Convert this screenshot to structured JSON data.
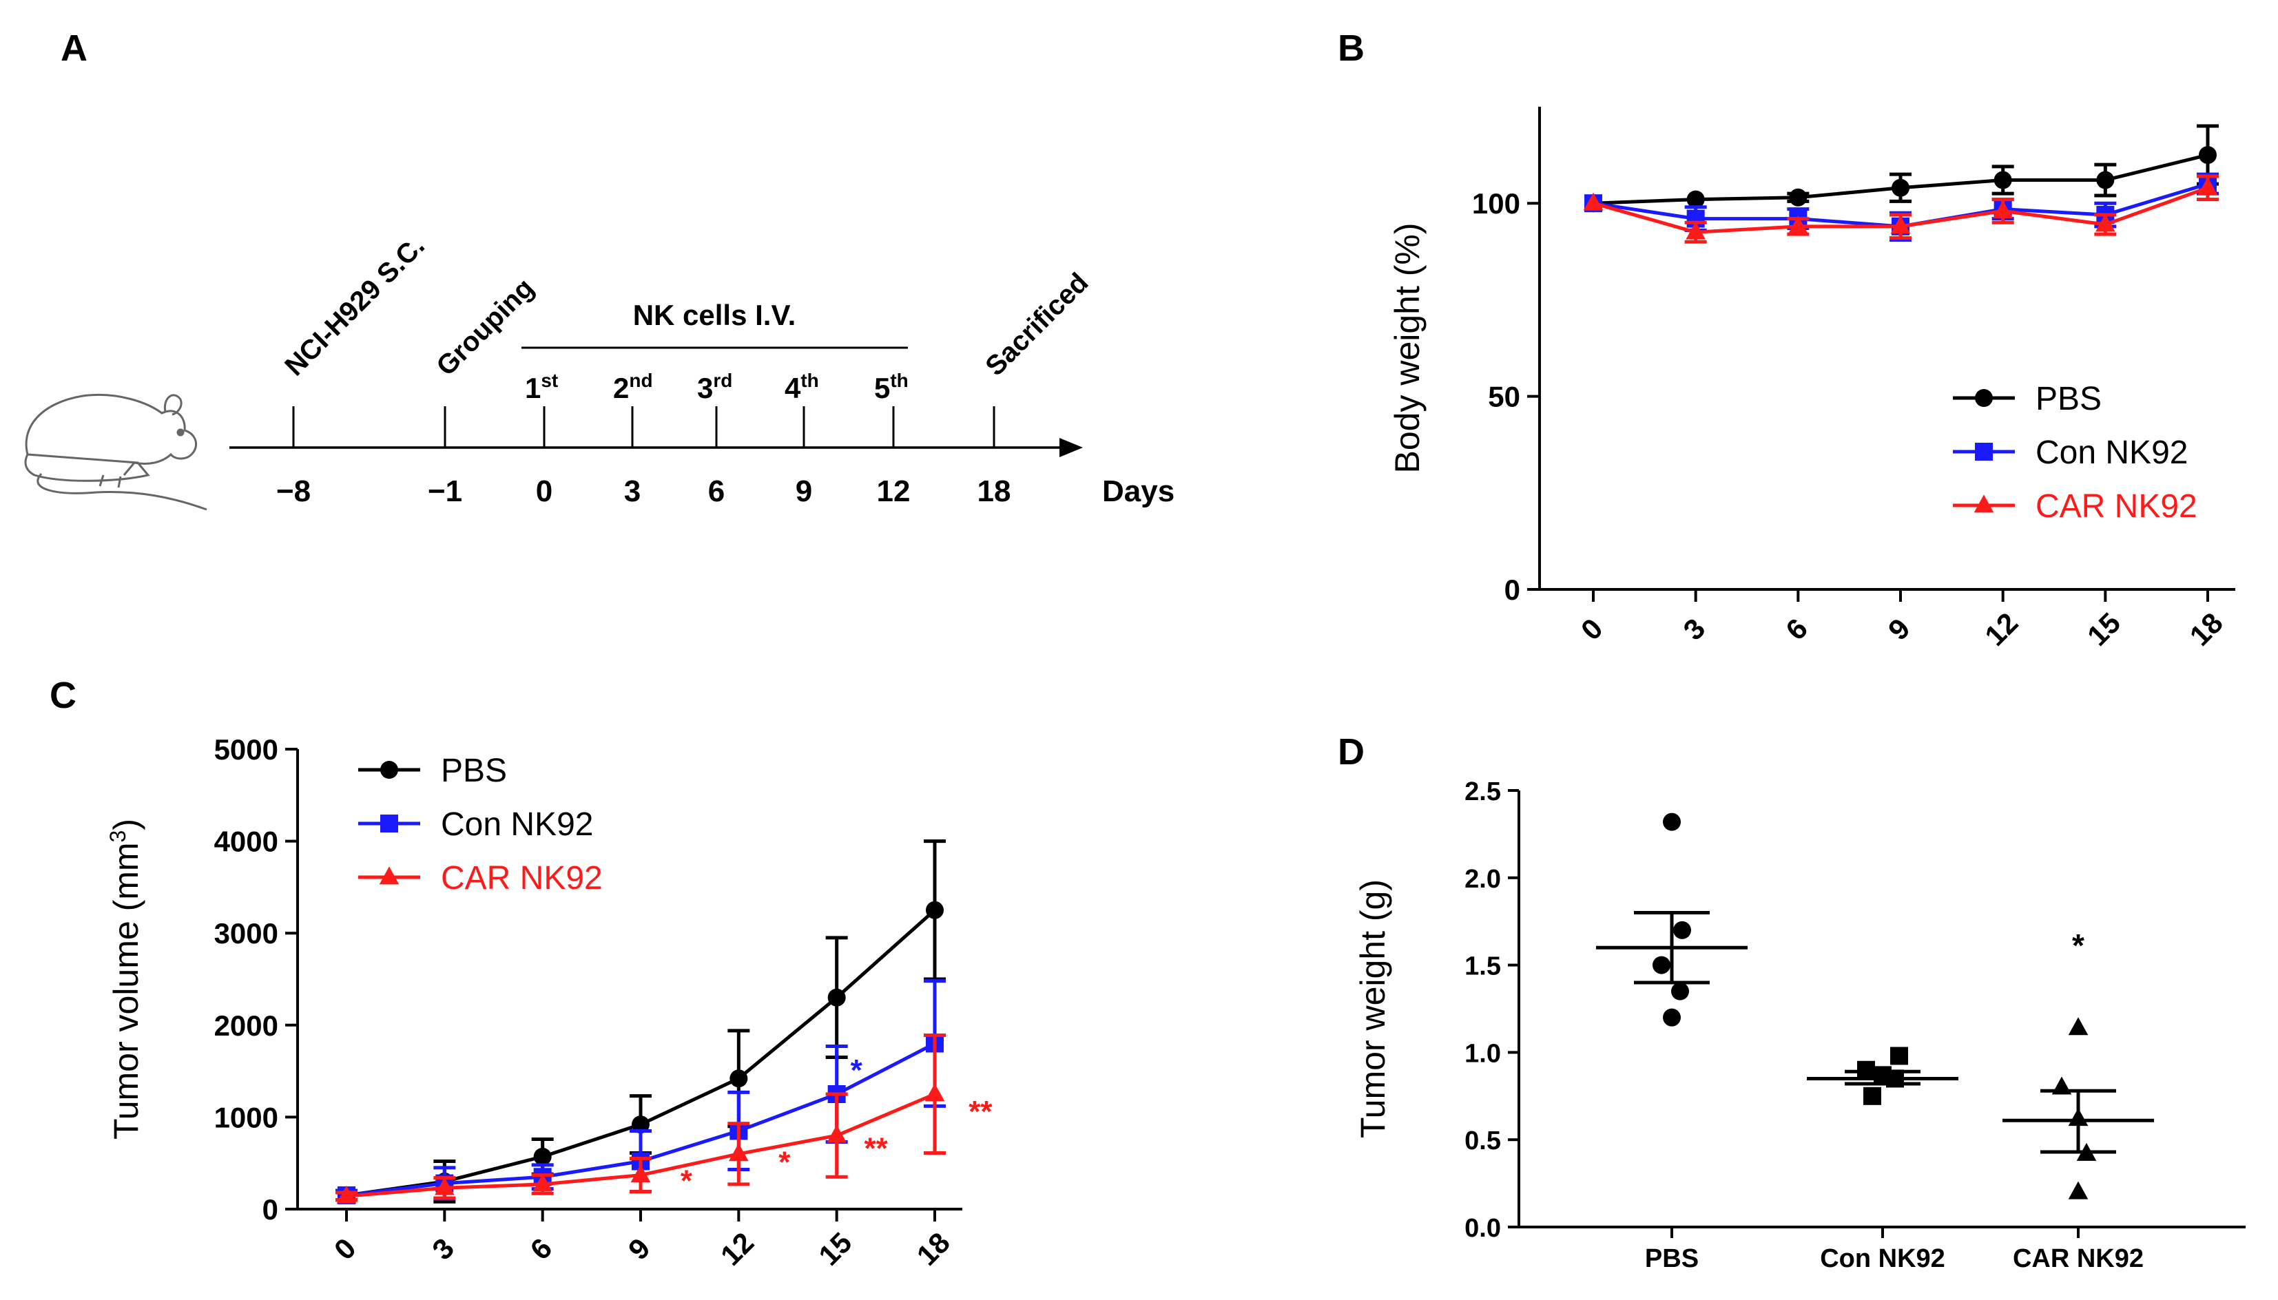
{
  "colors": {
    "pbs": "#000000",
    "con": "#1a1aff",
    "car": "#ff1a1a",
    "axis": "#000000"
  },
  "panel_labels": {
    "a": "A",
    "b": "B",
    "c": "C",
    "d": "D"
  },
  "timeline": {
    "events": [
      {
        "day": "−8",
        "label": "NCI-H929 S.C."
      },
      {
        "day": "−1",
        "label": "Grouping"
      },
      {
        "day": "18",
        "label": "Sacrificed"
      }
    ],
    "treatment_title": "NK cells I.V.",
    "doses": [
      {
        "day": "0",
        "ord": "1",
        "sup": "st"
      },
      {
        "day": "3",
        "ord": "2",
        "sup": "nd"
      },
      {
        "day": "6",
        "ord": "3",
        "sup": "rd"
      },
      {
        "day": "9",
        "ord": "4",
        "sup": "th"
      },
      {
        "day": "12",
        "ord": "5",
        "sup": "th"
      }
    ],
    "unit": "Days"
  },
  "chart_data": [
    {
      "id": "B",
      "type": "line",
      "title": "",
      "xlabel": "",
      "ylabel": "Body weight (%)",
      "categories": [
        "0",
        "3",
        "6",
        "9",
        "12",
        "15",
        "18"
      ],
      "ylim": [
        0,
        125
      ],
      "yticks": [
        0,
        50,
        100
      ],
      "legend_position": "bottom-right",
      "series": [
        {
          "name": "PBS",
          "color_key": "pbs",
          "marker": "circle",
          "values": [
            100,
            101,
            101.5,
            104,
            106,
            106,
            112.5
          ],
          "errors": [
            0,
            0,
            1,
            3.5,
            3.5,
            4,
            7.5
          ]
        },
        {
          "name": "Con NK92",
          "color_key": "con",
          "marker": "square",
          "values": [
            100,
            96,
            96,
            94,
            98.5,
            97,
            105
          ],
          "errors": [
            0,
            3,
            2.5,
            3.5,
            2.5,
            3,
            2.5
          ]
        },
        {
          "name": "CAR NK92",
          "color_key": "car",
          "marker": "triangle",
          "values": [
            100,
            92.5,
            94,
            94,
            98,
            94.5,
            104
          ],
          "errors": [
            0,
            2.5,
            2,
            3,
            3,
            2.5,
            3
          ]
        }
      ],
      "annotations": []
    },
    {
      "id": "C",
      "type": "line",
      "title": "",
      "xlabel": "",
      "ylabel": "Tumor volume (mm",
      "ylabel_sup": "3",
      "ylabel_end": ")",
      "categories": [
        "0",
        "3",
        "6",
        "9",
        "12",
        "15",
        "18"
      ],
      "ylim": [
        0,
        5000
      ],
      "yticks": [
        0,
        1000,
        2000,
        3000,
        4000,
        5000
      ],
      "legend_position": "top-left",
      "series": [
        {
          "name": "PBS",
          "color_key": "pbs",
          "marker": "circle",
          "values": [
            150,
            300,
            570,
            920,
            1420,
            2300,
            3250
          ],
          "errors": [
            50,
            220,
            190,
            310,
            520,
            650,
            750
          ]
        },
        {
          "name": "Con NK92",
          "color_key": "con",
          "marker": "square",
          "values": [
            150,
            280,
            350,
            520,
            850,
            1250,
            1800
          ],
          "errors": [
            50,
            170,
            130,
            330,
            420,
            520,
            680
          ]
        },
        {
          "name": "CAR NK92",
          "color_key": "car",
          "marker": "triangle",
          "values": [
            140,
            230,
            270,
            370,
            600,
            800,
            1250
          ],
          "errors": [
            40,
            110,
            100,
            180,
            330,
            450,
            640
          ]
        }
      ],
      "annotations": [
        {
          "text": "*",
          "color_key": "con",
          "x": 15.6,
          "y": 1400
        },
        {
          "text": "*",
          "color_key": "car",
          "x": 10.4,
          "y": 200
        },
        {
          "text": "*",
          "color_key": "car",
          "x": 13.4,
          "y": 400
        },
        {
          "text": "**",
          "color_key": "car",
          "x": 16.2,
          "y": 550
        },
        {
          "text": "**",
          "color_key": "car",
          "x": 19.4,
          "y": 950
        }
      ]
    },
    {
      "id": "D",
      "type": "scatter",
      "title": "",
      "xlabel": "",
      "ylabel": "Tumor weight (g)",
      "categories": [
        "PBS",
        "Con NK92",
        "CAR NK92"
      ],
      "ylim": [
        0,
        2.5
      ],
      "yticks": [
        "0.0",
        "0.5",
        "1.0",
        "1.5",
        "2.0",
        "2.5"
      ],
      "groups": [
        {
          "name": "PBS",
          "marker": "circle",
          "points": [
            2.32,
            1.7,
            1.5,
            1.35,
            1.2
          ],
          "offsets": [
            0,
            0.05,
            -0.05,
            0.04,
            0
          ],
          "mean": 1.6,
          "sem_low": 1.4,
          "sem_high": 1.8
        },
        {
          "name": "Con NK92",
          "marker": "square",
          "points": [
            0.98,
            0.9,
            0.87,
            0.85,
            0.75
          ],
          "offsets": [
            0.08,
            -0.08,
            0,
            0.06,
            -0.05
          ],
          "mean": 0.85,
          "sem_low": 0.82,
          "sem_high": 0.89
        },
        {
          "name": "CAR NK92",
          "marker": "triangle",
          "points": [
            1.14,
            0.8,
            0.62,
            0.42,
            0.2
          ],
          "offsets": [
            0,
            -0.08,
            0,
            0.04,
            0
          ],
          "mean": 0.61,
          "sem_low": 0.43,
          "sem_high": 0.78
        }
      ],
      "annotations": [
        {
          "text": "*",
          "group": 2,
          "y": 1.55
        }
      ]
    }
  ]
}
